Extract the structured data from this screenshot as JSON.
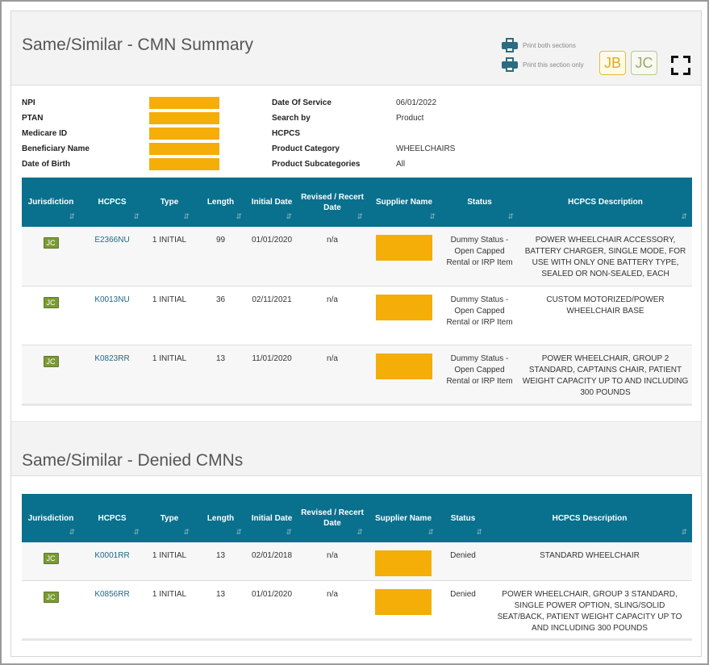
{
  "section1": {
    "title": "Same/Similar - CMN Summary",
    "print_both": "Print both sections",
    "print_this": "Print this section only",
    "badges": [
      "JB",
      "JC"
    ]
  },
  "info": {
    "left": [
      {
        "label": "NPI"
      },
      {
        "label": "PTAN"
      },
      {
        "label": "Medicare ID"
      },
      {
        "label": "Beneficiary Name"
      },
      {
        "label": "Date of Birth"
      }
    ],
    "right": [
      {
        "label": "Date Of Service",
        "value": "06/01/2022"
      },
      {
        "label": "Search by",
        "value": "Product"
      },
      {
        "label": "HCPCS",
        "value": ""
      },
      {
        "label": "Product Category",
        "value": "WHEELCHAIRS"
      },
      {
        "label": "Product Subcategories",
        "value": "All"
      }
    ]
  },
  "table1": {
    "headers": {
      "jurisdiction": "Jurisdiction",
      "hcpcs": "HCPCS",
      "type": "Type",
      "length": "Length",
      "initial_date": "Initial Date",
      "revised": "Revised / Recert Date",
      "supplier": "Supplier Name",
      "status": "Status",
      "description": "HCPCS Description"
    },
    "rows": [
      {
        "jur": "JC",
        "hcpcs": "E2366NU",
        "type": "1 INITIAL",
        "length": "99",
        "initial": "01/01/2020",
        "revised": "n/a",
        "status": "Dummy Status - Open Capped Rental or IRP Item",
        "desc": "POWER WHEELCHAIR ACCESSORY, BATTERY CHARGER, SINGLE MODE, FOR USE WITH ONLY ONE BATTERY TYPE, SEALED OR NON-SEALED, EACH"
      },
      {
        "jur": "JC",
        "hcpcs": "K0013NU",
        "type": "1 INITIAL",
        "length": "36",
        "initial": "02/11/2021",
        "revised": "n/a",
        "status": "Dummy Status - Open Capped Rental or IRP Item",
        "desc": "CUSTOM MOTORIZED/POWER WHEELCHAIR BASE"
      },
      {
        "jur": "JC",
        "hcpcs": "K0823RR",
        "type": "1 INITIAL",
        "length": "13",
        "initial": "11/01/2020",
        "revised": "n/a",
        "status": "Dummy Status - Open Capped Rental or IRP Item",
        "desc": "POWER WHEELCHAIR, GROUP 2 STANDARD, CAPTAINS CHAIR, PATIENT WEIGHT CAPACITY UP TO AND INCLUDING 300 POUNDS"
      }
    ]
  },
  "section2": {
    "title": "Same/Similar - Denied CMNs"
  },
  "table2": {
    "headers": {
      "jurisdiction": "Jurisdiction",
      "hcpcs": "HCPCS",
      "type": "Type",
      "length": "Length",
      "initial_date": "Initial Date",
      "revised": "Revised / Recert Date",
      "supplier": "Supplier Name",
      "status": "Status",
      "description": "HCPCS Description"
    },
    "rows": [
      {
        "jur": "JC",
        "hcpcs": "K0001RR",
        "type": "1 INITIAL",
        "length": "13",
        "initial": "02/01/2018",
        "revised": "n/a",
        "status": "Denied",
        "desc": "STANDARD WHEELCHAIR"
      },
      {
        "jur": "JC",
        "hcpcs": "K0856RR",
        "type": "1 INITIAL",
        "length": "13",
        "initial": "01/01/2020",
        "revised": "n/a",
        "status": "Denied",
        "desc": "POWER WHEELCHAIR, GROUP 3 STANDARD, SINGLE POWER OPTION, SLING/SOLID SEAT/BACK, PATIENT WEIGHT CAPACITY UP TO AND INCLUDING 300 POUNDS"
      }
    ]
  },
  "icons": {
    "sort": "sort-arrows-icon",
    "print": "printer-icon",
    "expand": "fullscreen-icon"
  },
  "colors": {
    "table_header": "#09708d",
    "redaction": "#f5ad08",
    "jc_badge": "#7b9a34",
    "link": "#1e6a8a"
  }
}
